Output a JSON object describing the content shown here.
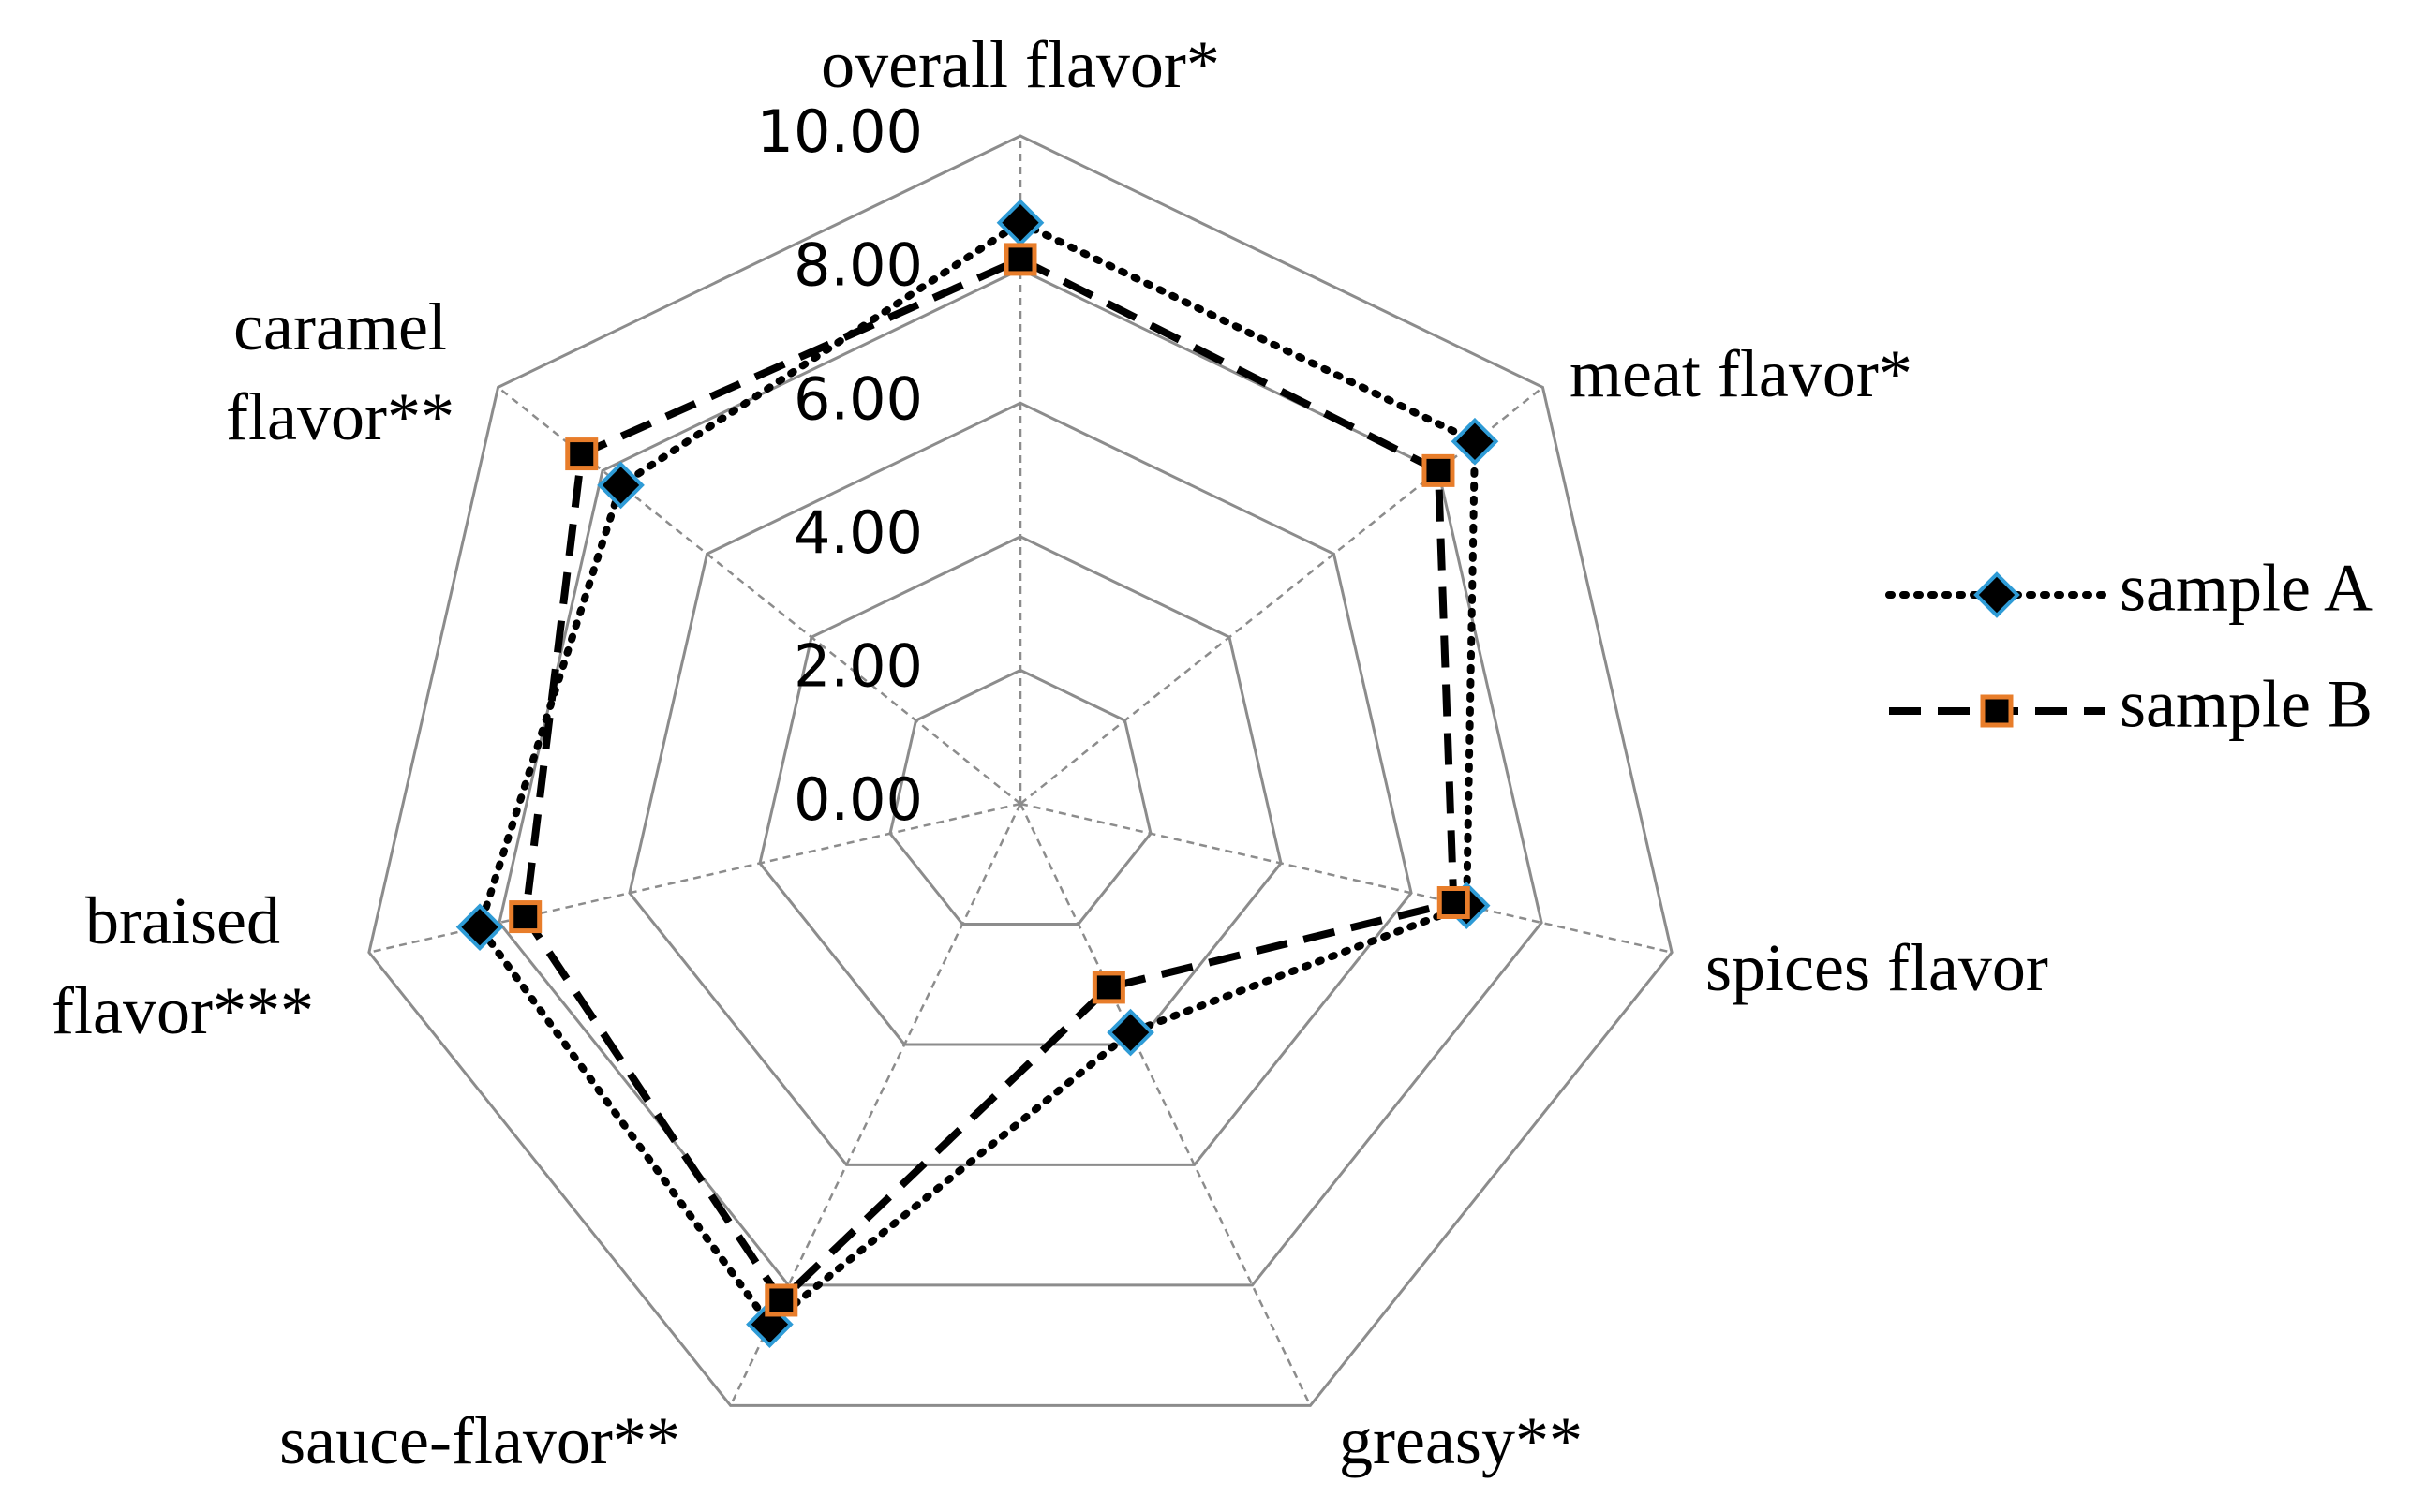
{
  "chart_data": {
    "type": "radar",
    "categories": [
      "overall flavor*",
      "meat flavor*",
      "spices flavor",
      "greasy**",
      "sauce-flavor**",
      "braised flavor***",
      "caramel flavor**"
    ],
    "series": [
      {
        "name": "sample A",
        "color": "#000000",
        "linestyle": "dotted",
        "marker": "diamond",
        "marker_edge_color": "#2e9bd6",
        "values": [
          8.7,
          8.7,
          6.85,
          3.8,
          8.65,
          8.3,
          7.65
        ]
      },
      {
        "name": "sample B",
        "color": "#000000",
        "linestyle": "dashed",
        "marker": "square",
        "marker_edge_color": "#e87d2a",
        "values": [
          8.15,
          8.0,
          6.65,
          3.05,
          8.25,
          7.6,
          8.4
        ]
      }
    ],
    "rlim": [
      0,
      10
    ],
    "rticks": [
      {
        "value": 0,
        "label": "0.00"
      },
      {
        "value": 2,
        "label": "2.00"
      },
      {
        "value": 4,
        "label": "4.00"
      },
      {
        "value": 6,
        "label": "6.00"
      },
      {
        "value": 8,
        "label": "8.00"
      },
      {
        "value": 10,
        "label": "10.00"
      }
    ],
    "grid": true,
    "legend": "right"
  }
}
